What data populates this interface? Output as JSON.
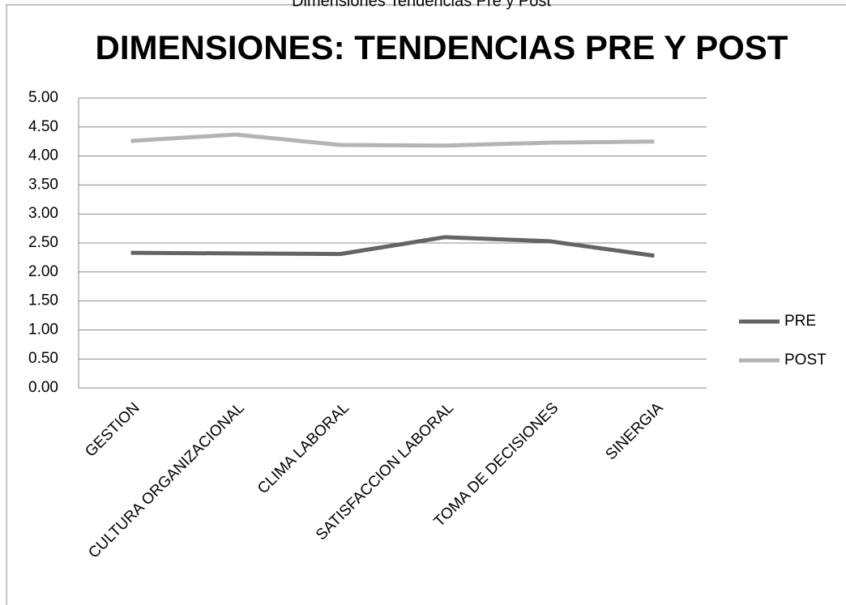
{
  "chart_data": {
    "type": "line",
    "header": "Dimensiones Tendencias Pre y Post",
    "title": "DIMENSIONES: TENDENCIAS PRE Y POST",
    "categories": [
      "GESTION",
      "CULTURA ORGANIZACIONAL",
      "CLIMA LABORAL",
      "SATISFACCION LABORAL",
      "TOMA DE DECISIONES",
      "SINERGIA"
    ],
    "series": [
      {
        "name": "PRE",
        "color": "#646464",
        "values": [
          2.33,
          2.32,
          2.31,
          2.6,
          2.53,
          2.28
        ]
      },
      {
        "name": "POST",
        "color": "#b4b4b4",
        "values": [
          4.26,
          4.37,
          4.19,
          4.18,
          4.23,
          4.25
        ]
      }
    ],
    "ylim": [
      0,
      5
    ],
    "yticks": [
      {
        "value": 0,
        "label": "0.00"
      },
      {
        "value": 0.5,
        "label": "0.50"
      },
      {
        "value": 1,
        "label": "1.00"
      },
      {
        "value": 1.5,
        "label": "1.50"
      },
      {
        "value": 2,
        "label": "2.00"
      },
      {
        "value": 2.5,
        "label": "2.50"
      },
      {
        "value": 3,
        "label": "3.00"
      },
      {
        "value": 3.5,
        "label": "3.50"
      },
      {
        "value": 4,
        "label": "4.00"
      },
      {
        "value": 4.5,
        "label": "4.50"
      },
      {
        "value": 5,
        "label": "5.00"
      }
    ],
    "grid": true,
    "legend": "right"
  }
}
